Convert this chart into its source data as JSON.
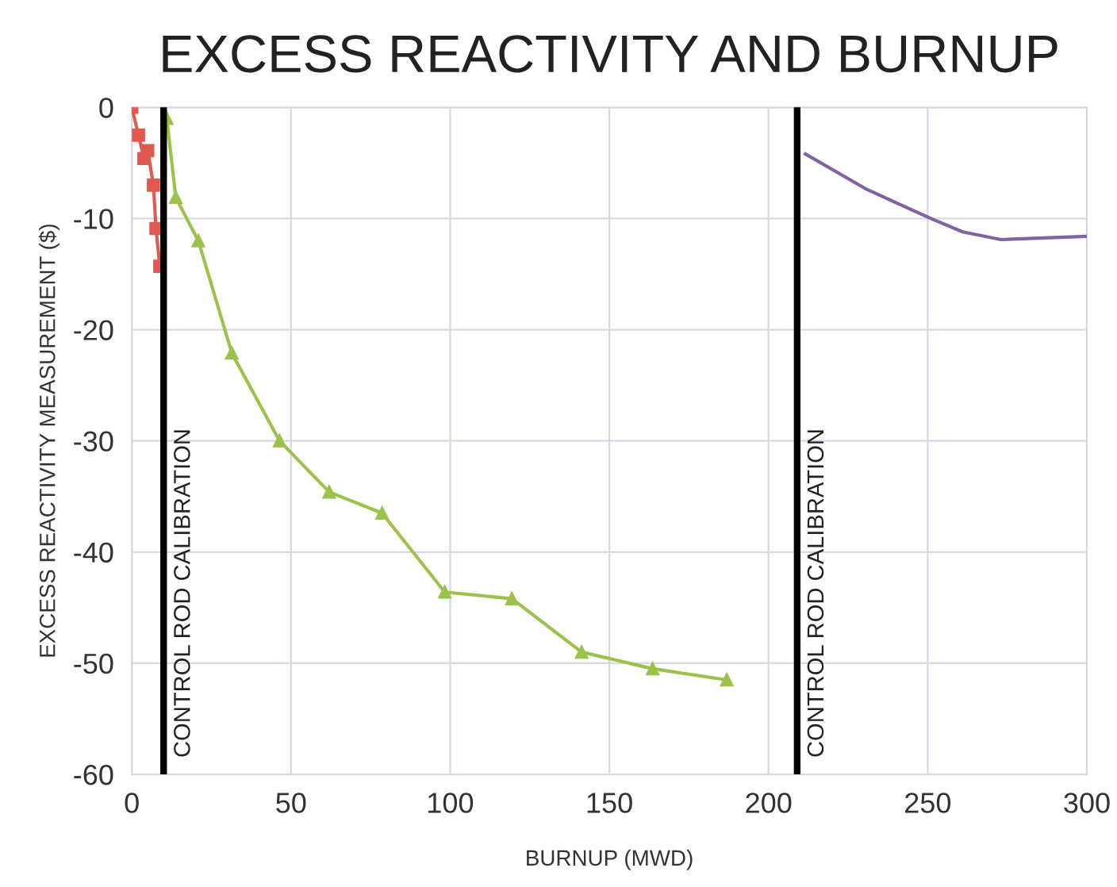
{
  "chart_data": {
    "type": "line",
    "title": "EXCESS REACTIVITY AND BURNUP",
    "xlabel": "BURNUP (MWD)",
    "ylabel": "EXCESS REACTIVITY MEASUREMENT ($)",
    "series": [
      {
        "color": "#e05a50",
        "marker": "square",
        "x": [
          0,
          2.1,
          3.8,
          5,
          6.8,
          7.6,
          8.8
        ],
        "values": [
          0,
          -2.5,
          -4.6,
          -3.9,
          -7,
          -10.9,
          -14.3
        ]
      },
      {
        "color": "#9bc34a",
        "marker": "triangle",
        "x": [
          11,
          13.8,
          20.9,
          31.4,
          46.4,
          62,
          78.6,
          98.3,
          119.4,
          141.3,
          163.6,
          186.9
        ],
        "values": [
          -1,
          -8.1,
          -12,
          -22.1,
          -30,
          -34.6,
          -36.5,
          -43.6,
          -44.2,
          -49,
          -50.5,
          -51.5
        ]
      },
      {
        "color": "#8064a2",
        "marker": "none",
        "x": [
          211.6,
          231,
          251,
          261,
          273,
          300
        ],
        "values": [
          -4.2,
          -7.4,
          -10,
          -11.2,
          -11.9,
          -11.6
        ]
      }
    ],
    "xlim": [
      0,
      300
    ],
    "xticks": [
      0,
      50,
      100,
      150,
      200,
      250,
      300
    ],
    "ylim": [
      -60,
      0
    ],
    "yticks": [
      -60,
      -50,
      -40,
      -30,
      -20,
      -10,
      0
    ],
    "grid": true,
    "ref_lines": [
      {
        "axis": "x",
        "value": 10,
        "label": "CONTROL ROD CALIBRATION",
        "color": "#000000"
      },
      {
        "axis": "x",
        "value": 209,
        "label": "CONTROL ROD CALIBRATION",
        "color": "#000000"
      }
    ]
  }
}
